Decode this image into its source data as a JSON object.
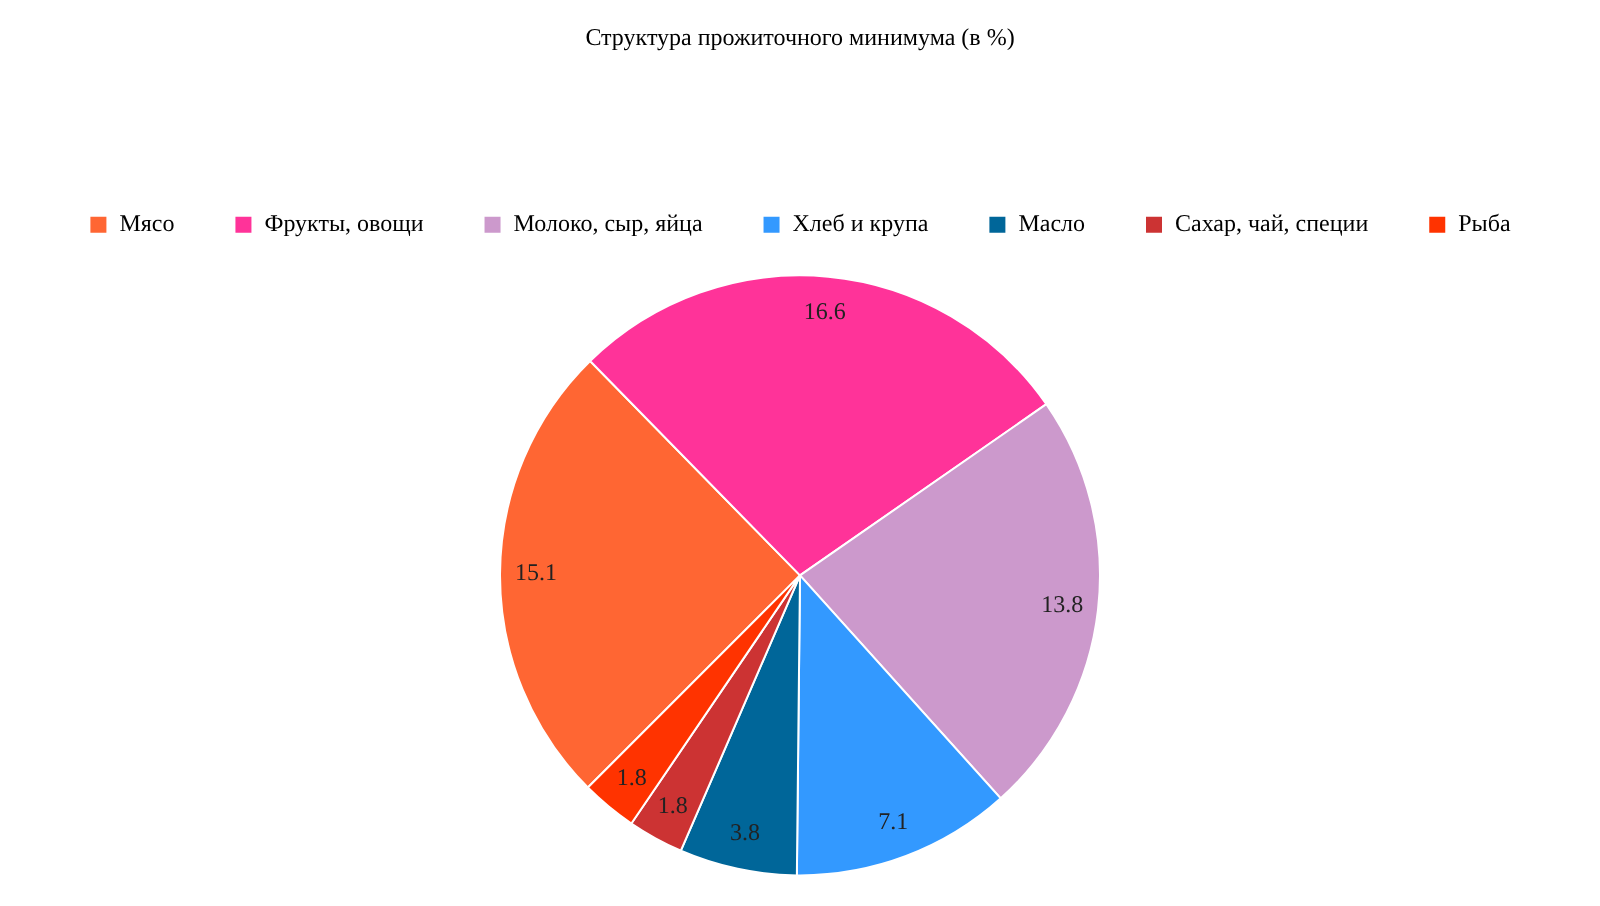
{
  "chart_data": {
    "type": "pie",
    "title": "Структура прожиточного минимума (в %)",
    "categories": [
      "Мясо",
      "Фрукты, овощи",
      "Молоко, сыр, яйца",
      "Хлеб и крупа",
      "Масло",
      "Сахар, чай, специи",
      "Рыба"
    ],
    "values": [
      15.1,
      16.6,
      13.8,
      7.1,
      3.8,
      1.8,
      1.8
    ],
    "colors": [
      "#ff6633",
      "#ff3399",
      "#cc99cc",
      "#3399ff",
      "#006699",
      "#cc3333",
      "#ff3300"
    ],
    "legend": "top",
    "data_labels": true
  }
}
